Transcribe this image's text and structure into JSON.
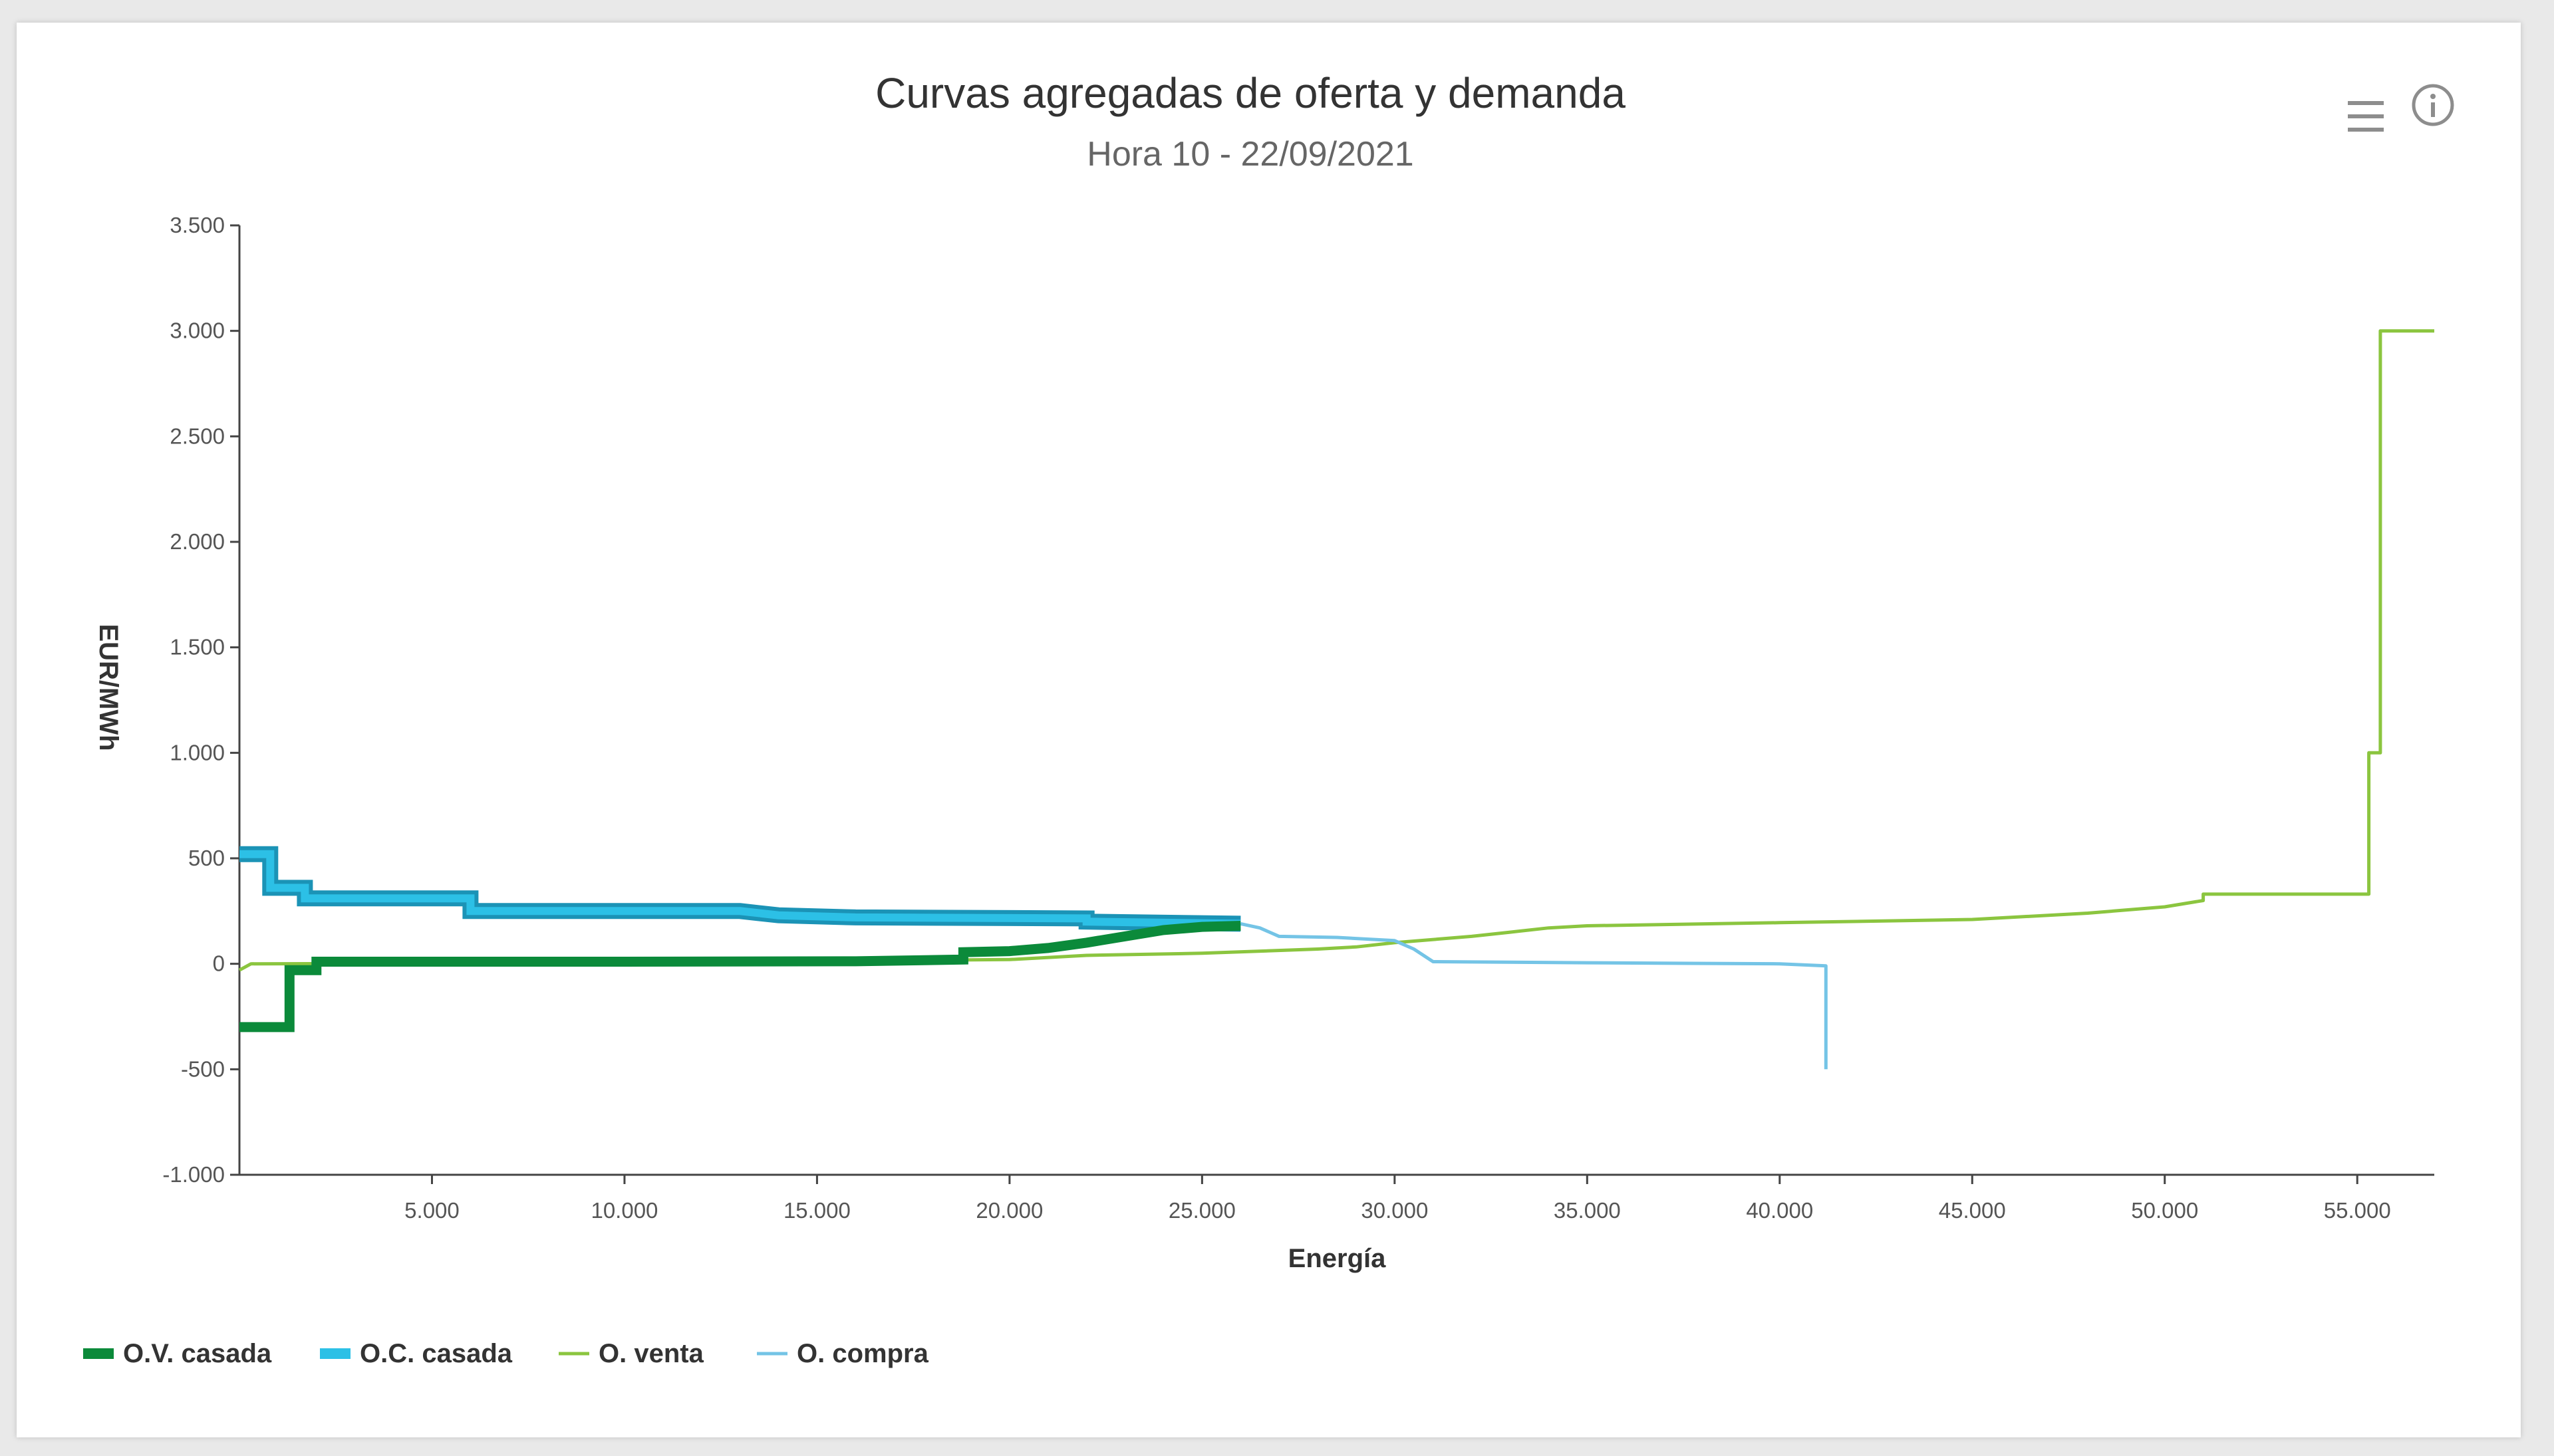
{
  "header": {
    "title": "Curvas agregadas de oferta y demanda",
    "subtitle": "Hora 10 - 22/09/2021"
  },
  "toolbar": {
    "menu_icon": "hamburger-menu-icon",
    "info_icon": "info-icon"
  },
  "chart_data": {
    "type": "line",
    "title": "Curvas agregadas de oferta y demanda",
    "subtitle": "Hora 10 - 22/09/2021",
    "xlabel": "Energía",
    "ylabel": "EUR/MWh",
    "xlim": [
      0,
      57000
    ],
    "ylim": [
      -1000,
      3500
    ],
    "x_ticks": [
      5000,
      10000,
      15000,
      20000,
      25000,
      30000,
      35000,
      40000,
      45000,
      50000,
      55000
    ],
    "x_tick_labels": [
      "5.000",
      "10.000",
      "15.000",
      "20.000",
      "25.000",
      "30.000",
      "35.000",
      "40.000",
      "45.000",
      "50.000",
      "55.000"
    ],
    "y_ticks": [
      3500,
      3000,
      2500,
      2000,
      1500,
      1000,
      500,
      0,
      -500,
      -1000
    ],
    "y_tick_labels": [
      "3.500",
      "3.000",
      "2.500",
      "2.000",
      "1.500",
      "1.000",
      "500",
      "0",
      "-500",
      "-1.000"
    ],
    "legend_position": "bottom-left",
    "series": [
      {
        "name": "O.V. casada",
        "color": "#0b8a3a",
        "line": "thick",
        "points": [
          [
            0,
            -300
          ],
          [
            1300,
            -300
          ],
          [
            1300,
            -30
          ],
          [
            2000,
            -30
          ],
          [
            2000,
            10
          ],
          [
            10000,
            10
          ],
          [
            16000,
            12
          ],
          [
            18800,
            20
          ],
          [
            18800,
            55
          ],
          [
            20000,
            60
          ],
          [
            21000,
            75
          ],
          [
            22000,
            100
          ],
          [
            23000,
            130
          ],
          [
            24000,
            160
          ],
          [
            25000,
            175
          ],
          [
            26000,
            180
          ]
        ]
      },
      {
        "name": "O.C. casada",
        "color": "#18a9d2",
        "line": "thick-outlined",
        "points": [
          [
            0,
            520
          ],
          [
            800,
            520
          ],
          [
            800,
            360
          ],
          [
            1700,
            360
          ],
          [
            1700,
            310
          ],
          [
            6000,
            310
          ],
          [
            6000,
            250
          ],
          [
            13000,
            250
          ],
          [
            14000,
            230
          ],
          [
            16000,
            220
          ],
          [
            22000,
            215
          ],
          [
            22000,
            200
          ],
          [
            26000,
            190
          ]
        ]
      },
      {
        "name": "O. venta",
        "color": "#8bc53f",
        "line": "thin",
        "points": [
          [
            0,
            -30
          ],
          [
            300,
            0
          ],
          [
            10000,
            5
          ],
          [
            20000,
            20
          ],
          [
            22000,
            40
          ],
          [
            25000,
            50
          ],
          [
            28000,
            70
          ],
          [
            29000,
            80
          ],
          [
            30000,
            100
          ],
          [
            32000,
            130
          ],
          [
            33000,
            150
          ],
          [
            34000,
            170
          ],
          [
            35000,
            180
          ],
          [
            40000,
            195
          ],
          [
            45000,
            210
          ],
          [
            48000,
            240
          ],
          [
            50000,
            270
          ],
          [
            51000,
            300
          ],
          [
            51000,
            330
          ],
          [
            55300,
            330
          ],
          [
            55300,
            1000
          ],
          [
            55600,
            1000
          ],
          [
            55600,
            3000
          ],
          [
            57000,
            3000
          ]
        ]
      },
      {
        "name": "O. compra",
        "color": "#74c4e6",
        "line": "thin",
        "points": [
          [
            26000,
            190
          ],
          [
            26500,
            170
          ],
          [
            27000,
            130
          ],
          [
            28500,
            125
          ],
          [
            30000,
            110
          ],
          [
            30500,
            70
          ],
          [
            31000,
            10
          ],
          [
            35000,
            5
          ],
          [
            40000,
            0
          ],
          [
            41200,
            -10
          ],
          [
            41200,
            -500
          ]
        ]
      }
    ]
  }
}
